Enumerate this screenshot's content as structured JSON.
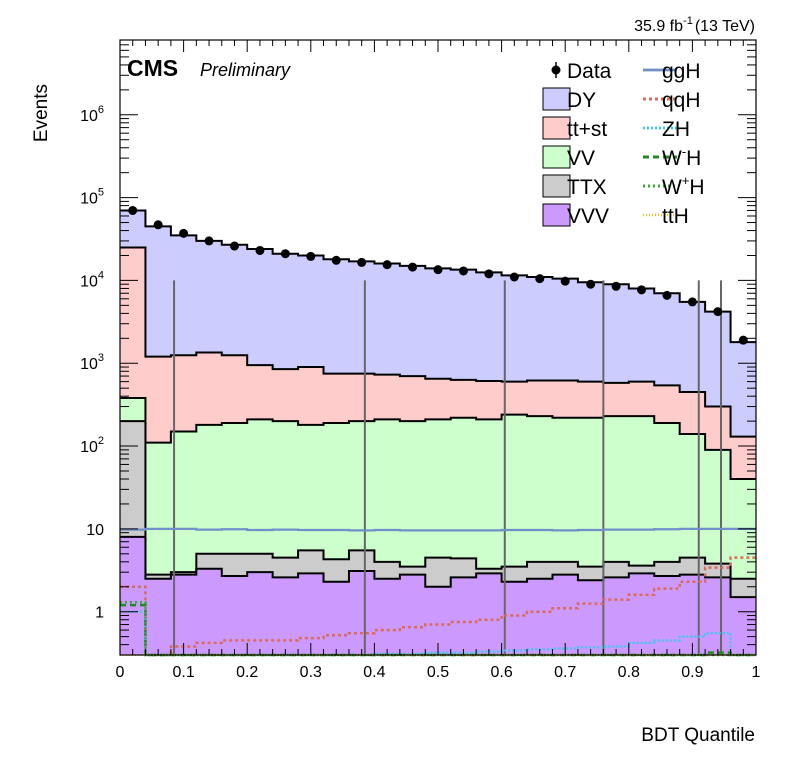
{
  "chart_data": {
    "type": "histogram-stack",
    "lumi_label": "35.9 fb",
    "lumi_exponent": "-1",
    "lumi_energy": "(13 TeV)",
    "experiment": "CMS",
    "status": "Preliminary",
    "xlabel": "BDT Quantile",
    "ylabel": "Events",
    "x_range": [
      0,
      1
    ],
    "y_range": [
      0.3,
      8000000
    ],
    "y_scale": "log",
    "x_ticks": [
      "0",
      "0.1",
      "0.2",
      "0.3",
      "0.4",
      "0.5",
      "0.6",
      "0.7",
      "0.8",
      "0.9",
      "1"
    ],
    "y_ticks": [
      {
        "value": 1000000,
        "label": "10",
        "sup": "6"
      },
      {
        "value": 100000,
        "label": "10",
        "sup": "5"
      },
      {
        "value": 10000,
        "label": "10",
        "sup": "4"
      },
      {
        "value": 1000,
        "label": "10",
        "sup": "3"
      },
      {
        "value": 100,
        "label": "10",
        "sup": "2"
      },
      {
        "value": 10,
        "label": "10",
        "sup": ""
      },
      {
        "value": 1,
        "label": "1",
        "sup": ""
      }
    ],
    "bin_edges": [
      0,
      0.04,
      0.08,
      0.12,
      0.16,
      0.2,
      0.24,
      0.28,
      0.32,
      0.36,
      0.4,
      0.44,
      0.48,
      0.52,
      0.56,
      0.6,
      0.64,
      0.68,
      0.72,
      0.76,
      0.8,
      0.84,
      0.88,
      0.92,
      0.96,
      1.0
    ],
    "stack_colors": {
      "DY": "#ccccff",
      "ttst": "#ffcccc",
      "VV": "#ccffcc",
      "TTX": "#cccccc",
      "VVV": "#cc99ff"
    },
    "stack_cumulative": {
      "VVV": [
        8,
        2.5,
        2.8,
        3.3,
        2.7,
        3.0,
        2.6,
        2.9,
        2.3,
        3.1,
        2.5,
        2.8,
        2.0,
        2.6,
        2.9,
        2.3,
        2.5,
        2.8,
        2.4,
        2.6,
        2.9,
        2.7,
        2.8,
        2.6,
        1.5
      ],
      "TTX": [
        200,
        2.8,
        3.0,
        5.0,
        5.0,
        5.0,
        4.5,
        5.5,
        4.3,
        5.5,
        4.0,
        3.5,
        4.5,
        4.4,
        3.3,
        3.5,
        4.0,
        4.0,
        3.5,
        4.0,
        3.6,
        4.0,
        4.5,
        3.8,
        2.5
      ],
      "VV": [
        380,
        110,
        150,
        180,
        190,
        210,
        200,
        180,
        190,
        200,
        210,
        200,
        210,
        220,
        210,
        240,
        230,
        220,
        220,
        230,
        230,
        190,
        140,
        90,
        40
      ],
      "TTST": [
        25000,
        1200,
        1250,
        1350,
        1250,
        950,
        850,
        900,
        750,
        750,
        730,
        700,
        650,
        630,
        610,
        600,
        620,
        620,
        600,
        580,
        600,
        540,
        450,
        300,
        130
      ],
      "DY": [
        70000,
        45000,
        35000,
        30000,
        27000,
        24000,
        21000,
        20000,
        18000,
        17000,
        16000,
        15000,
        14000,
        13500,
        12500,
        11500,
        11000,
        10500,
        9500,
        9000,
        8000,
        7000,
        5500,
        4200,
        1800
      ]
    },
    "data_points": [
      70000,
      47000,
      37000,
      30000,
      26000,
      23000,
      21000,
      19500,
      17500,
      16500,
      15500,
      14500,
      13500,
      13000,
      12000,
      11000,
      10500,
      9800,
      9000,
      8500,
      7700,
      6600,
      5500,
      4200,
      1900
    ],
    "signals": [
      {
        "key": "ggH",
        "color": "#6f90c8",
        "dash": "",
        "width": 2.2,
        "values": [
          9.8,
          10,
          10,
          9.8,
          9.9,
          9.7,
          9.8,
          9.7,
          9.7,
          9.6,
          9.7,
          9.6,
          9.6,
          9.6,
          9.6,
          9.7,
          9.7,
          9.6,
          9.7,
          9.8,
          9.8,
          9.9,
          10,
          10,
          10
        ]
      },
      {
        "key": "qqH",
        "color": "#d96b5a",
        "dash": "3,3",
        "width": 2.5,
        "values": [
          2.0,
          0.3,
          0.38,
          0.42,
          0.45,
          0.45,
          0.45,
          0.48,
          0.52,
          0.55,
          0.6,
          0.65,
          0.7,
          0.75,
          0.8,
          0.9,
          1.0,
          1.1,
          1.25,
          1.4,
          1.6,
          1.9,
          2.3,
          3.4,
          4.5
        ]
      },
      {
        "key": "ZH",
        "color": "#33ccee",
        "dash": "2,2",
        "width": 2.2,
        "values": [
          1.0,
          0.22,
          0.25,
          0.27,
          0.28,
          0.28,
          0.28,
          0.29,
          0.3,
          0.3,
          0.31,
          0.31,
          0.32,
          0.32,
          0.33,
          0.34,
          0.35,
          0.36,
          0.37,
          0.38,
          0.42,
          0.45,
          0.5,
          0.55,
          0.3
        ]
      },
      {
        "key": "WmH",
        "color": "#228822",
        "dash": "6,4",
        "width": 2.5,
        "values": [
          1.2,
          0.18,
          0.19,
          0.19,
          0.19,
          0.19,
          0.19,
          0.19,
          0.19,
          0.2,
          0.2,
          0.2,
          0.21,
          0.21,
          0.22,
          0.22,
          0.22,
          0.23,
          0.23,
          0.24,
          0.25,
          0.27,
          0.3,
          0.32,
          0.2
        ]
      },
      {
        "key": "WpH",
        "color": "#33aa33",
        "dash": "2,3",
        "width": 2.5,
        "values": [
          1.3,
          0.13,
          0.13,
          0.13,
          0.13,
          0.13,
          0.13,
          0.13,
          0.13,
          0.14,
          0.14,
          0.14,
          0.14,
          0.14,
          0.15,
          0.15,
          0.15,
          0.15,
          0.15,
          0.16,
          0.16,
          0.17,
          0.17,
          0.18,
          0.1
        ]
      },
      {
        "key": "ttH",
        "color": "#e8c020",
        "dash": "1,2",
        "width": 2.0,
        "values": [
          0.05,
          0.05,
          0.05,
          0.05,
          0.05,
          0.05,
          0.05,
          0.05,
          0.05,
          0.05,
          0.05,
          0.05,
          0.05,
          0.05,
          0.05,
          0.05,
          0.05,
          0.05,
          0.05,
          0.05,
          0.05,
          0.05,
          0.05,
          0.05,
          0.05
        ]
      }
    ],
    "vertical_lines_x": [
      0.085,
      0.385,
      0.605,
      0.76,
      0.91,
      0.945
    ],
    "vertical_lines_top": 10000,
    "legend": {
      "left": [
        {
          "key": "Data",
          "text": "Data",
          "kind": "marker"
        },
        {
          "key": "DY",
          "text": "DY",
          "kind": "box",
          "color": "#ccccff"
        },
        {
          "key": "ttst",
          "text": "tt+st",
          "kind": "box",
          "color": "#ffcccc"
        },
        {
          "key": "VV",
          "text": "VV",
          "kind": "box",
          "color": "#ccffcc"
        },
        {
          "key": "TTX",
          "text": "TTX",
          "kind": "box",
          "color": "#cccccc"
        },
        {
          "key": "VVV",
          "text": "VVV",
          "kind": "box",
          "color": "#cc99ff"
        }
      ],
      "right": [
        {
          "key": "ggH",
          "text": "ggH",
          "sup": ""
        },
        {
          "key": "qqH",
          "text": "qqH",
          "sup": ""
        },
        {
          "key": "ZH",
          "text": "ZH",
          "sup": ""
        },
        {
          "key": "WmH",
          "text": "W",
          "sup": "-",
          "tail": "H"
        },
        {
          "key": "WpH",
          "text": "W",
          "sup": "+",
          "tail": "H"
        },
        {
          "key": "ttH",
          "text": "ttH",
          "sup": ""
        }
      ]
    }
  }
}
